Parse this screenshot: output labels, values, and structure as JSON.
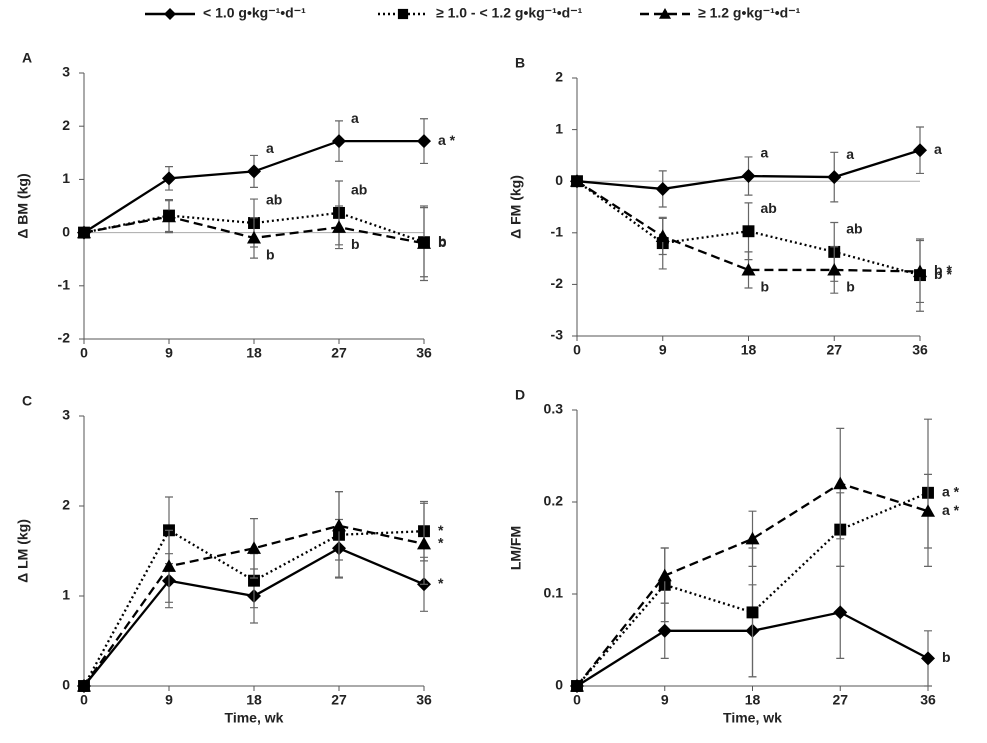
{
  "legend": [
    {
      "name": "< 1.0 g•kg⁻¹•d⁻¹",
      "marker": "diamond",
      "dash": "none"
    },
    {
      "name": "≥ 1.0 - < 1.2 g•kg⁻¹•d⁻¹",
      "marker": "square",
      "dash": "2,3"
    },
    {
      "name": "≥ 1.2 g•kg⁻¹•d⁻¹",
      "marker": "triangle",
      "dash": "9,5"
    }
  ],
  "chart_data": [
    {
      "type": "line",
      "panel": "A",
      "ylabel": "Δ BM (kg)",
      "x": [
        0,
        9,
        18,
        27,
        36
      ],
      "xlim": [
        0,
        36
      ],
      "xticks": [
        0,
        9,
        18,
        27,
        36
      ],
      "ylim": [
        -2,
        3
      ],
      "yticks": [
        -2,
        -1,
        0,
        1,
        2,
        3
      ],
      "series": [
        {
          "color": "#000000",
          "values": [
            0,
            1.02,
            1.15,
            1.72,
            1.72
          ],
          "errors": [
            0,
            0.22,
            0.3,
            0.38,
            0.42
          ],
          "annotations": [
            null,
            null,
            "a",
            "a",
            "a *"
          ]
        },
        {
          "color": "#000000",
          "values": [
            0,
            0.32,
            0.18,
            0.37,
            -0.18
          ],
          "errors": [
            0,
            0.3,
            0.45,
            0.6,
            0.65
          ],
          "annotations": [
            null,
            null,
            "ab",
            "ab",
            "b"
          ]
        },
        {
          "color": "#000000",
          "values": [
            0,
            0.3,
            -0.1,
            0.1,
            -0.2
          ],
          "errors": [
            0,
            0.3,
            0.38,
            0.4,
            0.7
          ],
          "annotations": [
            null,
            null,
            "b",
            "b",
            "b"
          ]
        }
      ]
    },
    {
      "type": "line",
      "panel": "B",
      "ylabel": "Δ FM (kg)",
      "x": [
        0,
        9,
        18,
        27,
        36
      ],
      "xlim": [
        0,
        36
      ],
      "xticks": [
        0,
        9,
        18,
        27,
        36
      ],
      "ylim": [
        -3,
        2
      ],
      "yticks": [
        -3,
        -2,
        -1,
        0,
        1,
        2
      ],
      "series": [
        {
          "color": "#000000",
          "values": [
            0,
            -0.15,
            0.1,
            0.08,
            0.6
          ],
          "errors": [
            0,
            0.35,
            0.37,
            0.48,
            0.45
          ],
          "annotations": [
            null,
            null,
            "a",
            "a",
            "a"
          ]
        },
        {
          "color": "#000000",
          "values": [
            0,
            -1.2,
            -0.97,
            -1.37,
            -1.82
          ],
          "errors": [
            0,
            0.5,
            0.55,
            0.57,
            0.7
          ],
          "annotations": [
            null,
            null,
            "ab",
            "ab",
            "b *"
          ]
        },
        {
          "color": "#000000",
          "values": [
            0,
            -1.07,
            -1.72,
            -1.72,
            -1.75
          ],
          "errors": [
            0,
            0.35,
            0.35,
            0.45,
            0.6
          ],
          "annotations": [
            null,
            null,
            "b",
            "b",
            "b *"
          ]
        }
      ]
    },
    {
      "type": "line",
      "panel": "C",
      "ylabel": "Δ LM (kg)",
      "xlabel": "Time, wk",
      "x": [
        0,
        9,
        18,
        27,
        36
      ],
      "xlim": [
        0,
        36
      ],
      "xticks": [
        0,
        9,
        18,
        27,
        36
      ],
      "ylim": [
        0,
        3
      ],
      "yticks": [
        0,
        1,
        2,
        3
      ],
      "series": [
        {
          "color": "#000000",
          "values": [
            0,
            1.17,
            1.0,
            1.53,
            1.13
          ],
          "errors": [
            0,
            0.3,
            0.3,
            0.32,
            0.3
          ],
          "annotations": [
            null,
            null,
            null,
            null,
            "*"
          ]
        },
        {
          "color": "#000000",
          "values": [
            0,
            1.73,
            1.17,
            1.68,
            1.72
          ],
          "errors": [
            0,
            0.37,
            0.3,
            0.48,
            0.33
          ],
          "annotations": [
            null,
            null,
            null,
            null,
            "*"
          ]
        },
        {
          "color": "#000000",
          "values": [
            0,
            1.33,
            1.53,
            1.78,
            1.58
          ],
          "errors": [
            0,
            0.4,
            0.33,
            0.38,
            0.45
          ],
          "annotations": [
            null,
            null,
            null,
            null,
            "*"
          ]
        }
      ]
    },
    {
      "type": "line",
      "panel": "D",
      "ylabel": "LM/FM",
      "xlabel": "Time, wk",
      "x": [
        0,
        9,
        18,
        27,
        36
      ],
      "xlim": [
        0,
        36
      ],
      "xticks": [
        0,
        9,
        18,
        27,
        36
      ],
      "ylim": [
        0,
        0.3
      ],
      "yticks": [
        0,
        0.1,
        0.2,
        0.3
      ],
      "series": [
        {
          "color": "#000000",
          "values": [
            0,
            0.06,
            0.06,
            0.08,
            0.03
          ],
          "errors": [
            0,
            0.03,
            0.05,
            0.05,
            0.03
          ],
          "annotations": [
            null,
            null,
            null,
            null,
            "b"
          ]
        },
        {
          "color": "#000000",
          "values": [
            0,
            0.11,
            0.08,
            0.17,
            0.21
          ],
          "errors": [
            0,
            0.04,
            0.07,
            0.04,
            0.08
          ],
          "annotations": [
            null,
            null,
            null,
            null,
            "a *"
          ]
        },
        {
          "color": "#000000",
          "values": [
            0,
            0.12,
            0.16,
            0.22,
            0.19
          ],
          "errors": [
            0,
            0.03,
            0.03,
            0.06,
            0.04
          ],
          "annotations": [
            null,
            null,
            null,
            null,
            "a *"
          ]
        }
      ]
    }
  ]
}
